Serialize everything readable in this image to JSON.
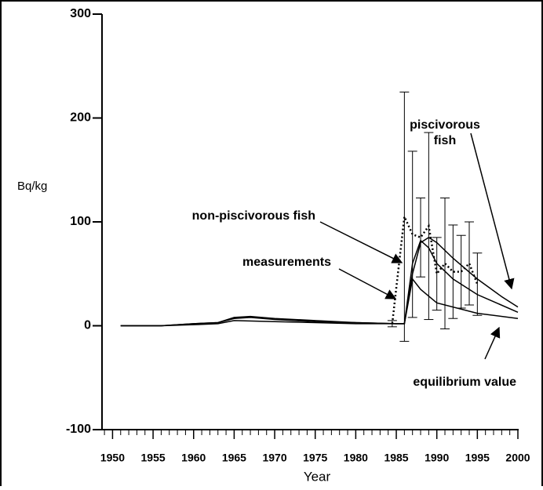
{
  "chart_data": {
    "type": "line",
    "ylabel": "Bq/kg",
    "xlabel": "Year",
    "xlim": [
      1948.7,
      2000
    ],
    "xticks": [
      1950,
      1955,
      1960,
      1965,
      1970,
      1975,
      1980,
      1985,
      1990,
      1995,
      2000
    ],
    "ylim": [
      -100,
      300
    ],
    "yticks": [
      -100,
      0,
      100,
      200,
      300
    ],
    "series": [
      {
        "name": "piscivorous fish",
        "color": "#000000",
        "style": "solid",
        "x": [
          1951,
          1956,
          1960,
          1963,
          1965,
          1967,
          1970,
          1975,
          1980,
          1985,
          1986,
          1987,
          1988,
          1989,
          1990,
          1992,
          1995,
          1998,
          2000
        ],
        "values": [
          0,
          0,
          2,
          3,
          8,
          9,
          7,
          5,
          3,
          2,
          2,
          50,
          80,
          85,
          80,
          65,
          45,
          28,
          18
        ]
      },
      {
        "name": "non-piscivorous fish",
        "color": "#000000",
        "style": "solid",
        "x": [
          1951,
          1956,
          1960,
          1963,
          1965,
          1967,
          1970,
          1975,
          1980,
          1985,
          1986,
          1987,
          1988,
          1989,
          1990,
          1992,
          1995,
          2000
        ],
        "values": [
          0,
          0,
          2,
          3,
          7,
          8,
          6,
          4,
          3,
          2,
          2,
          60,
          82,
          75,
          60,
          45,
          30,
          13
        ]
      },
      {
        "name": "equilibrium value",
        "color": "#000000",
        "style": "solid",
        "x": [
          1951,
          1956,
          1960,
          1963,
          1965,
          1970,
          1975,
          1980,
          1986,
          1987,
          1988,
          1990,
          1995,
          2000
        ],
        "values": [
          0,
          0,
          1,
          2,
          5,
          4,
          3,
          2,
          2,
          45,
          35,
          22,
          12,
          7
        ]
      },
      {
        "name": "measurements",
        "color": "#000000",
        "style": "dotted",
        "x": [
          1984.5,
          1986,
          1987,
          1988,
          1989,
          1990,
          1991,
          1992,
          1993,
          1994,
          1995
        ],
        "values": [
          2,
          105,
          88,
          85,
          96,
          50,
          60,
          52,
          52,
          60,
          40
        ],
        "errors": [
          3,
          120,
          80,
          38,
          90,
          35,
          63,
          45,
          35,
          40,
          30
        ]
      }
    ],
    "annotations": [
      {
        "lines": [
          "piscivorous",
          "fish"
        ]
      },
      {
        "lines": [
          "non-piscivorous fish"
        ]
      },
      {
        "lines": [
          "measurements"
        ]
      },
      {
        "lines": [
          "equilibrium value"
        ]
      }
    ]
  }
}
